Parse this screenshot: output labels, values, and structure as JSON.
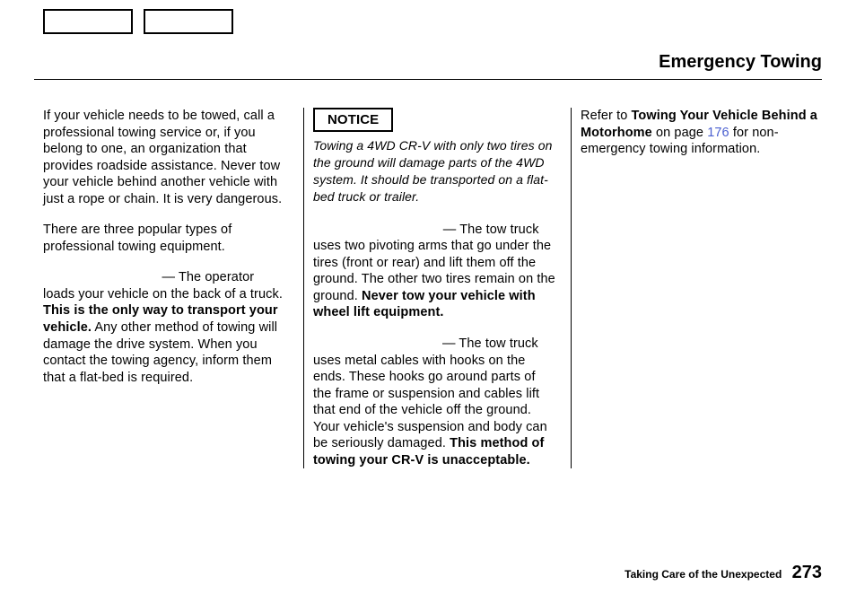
{
  "title": "Emergency Towing",
  "col1": {
    "p1": "If your vehicle needs to be towed, call a professional towing service or, if you belong to one, an organization that provides roadside assistance. Never tow your vehicle behind another vehicle with just a rope or chain. It is very dangerous.",
    "p2": "There are three popular types of professional towing equipment.",
    "p3_lead": " — The operator loads your vehicle on the back of a truck. ",
    "p3_bold": "This is the only way to transport your vehicle.",
    "p3_rest": " Any other method of towing will damage the drive system. When you contact the towing agency, inform them that a flat-bed is required."
  },
  "col2": {
    "notice_label": "NOTICE",
    "notice_text": "Towing a 4WD CR-V with only two tires on the ground will damage parts of the 4WD system. It should be transported on a flat-bed truck or trailer.",
    "p1_lead": " — The tow truck uses two pivoting arms that go under the tires (front or rear) and lift them off the ground. The other two tires remain on the ground. ",
    "p1_bold": "Never tow your vehicle with wheel lift equipment.",
    "p2_lead": " — The tow truck uses metal cables with hooks on the ends. These hooks go around parts of the frame or suspension and cables lift that end of the vehicle off the ground. Your vehicle's suspension and body can be seriously damaged. ",
    "p2_bold": "This method of towing your CR-V is unacceptable."
  },
  "col3": {
    "p1_a": "Refer to ",
    "p1_bold": "Towing Your Vehicle Behind a Motorhome",
    "p1_b": " on page ",
    "p1_link": "176",
    "p1_c": " for non-emergency towing information."
  },
  "footer": {
    "label": "Taking Care of the Unexpected",
    "num": "273"
  }
}
